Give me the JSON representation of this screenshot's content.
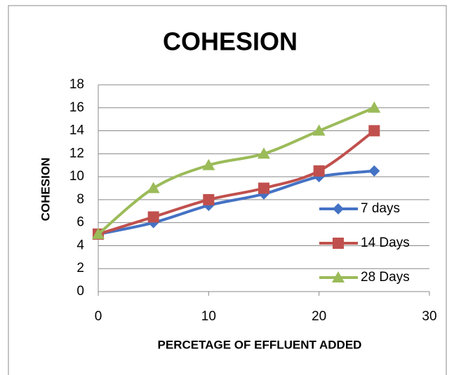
{
  "chart_data": {
    "type": "line",
    "title": "COHESION",
    "x_label": "PERCETAGE OF EFFLUENT ADDED",
    "y_label": "COHESION",
    "x": [
      0,
      5,
      10,
      15,
      20,
      25
    ],
    "series": [
      {
        "name": "7 days",
        "color": "#4472c4",
        "marker": "diamond",
        "values": [
          5,
          6,
          7.5,
          8.5,
          10,
          10.5
        ]
      },
      {
        "name": "14 Days",
        "color": "#c0504d",
        "marker": "square",
        "values": [
          5,
          6.5,
          8,
          9,
          10.5,
          14
        ]
      },
      {
        "name": "28 Days",
        "color": "#9bbb59",
        "marker": "triangle",
        "values": [
          5,
          9,
          11,
          12,
          14,
          16
        ]
      }
    ],
    "xlim": [
      0,
      30
    ],
    "xticks": [
      0,
      10,
      20,
      30
    ],
    "ylim": [
      0,
      18
    ],
    "yticks": [
      0,
      2,
      4,
      6,
      8,
      10,
      12,
      14,
      16,
      18
    ],
    "grid": true,
    "legend": "right"
  }
}
